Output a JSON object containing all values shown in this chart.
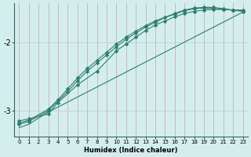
{
  "background_color": "#d4eeee",
  "line_color": "#2d7d6e",
  "grid_color_v": "#c8b0b0",
  "grid_color_h": "#b8d4d4",
  "xlabel": "Humidex (Indice chaleur)",
  "xlim": [
    -0.5,
    23.5
  ],
  "ylim": [
    -3.38,
    -1.42
  ],
  "yticks": [
    -3,
    -2
  ],
  "xticks": [
    0,
    1,
    2,
    3,
    4,
    5,
    6,
    7,
    8,
    9,
    10,
    11,
    12,
    13,
    14,
    15,
    16,
    17,
    18,
    19,
    20,
    21,
    22,
    23
  ],
  "series": [
    {
      "x": [
        0,
        1,
        3,
        4,
        6,
        8,
        10,
        11,
        12,
        13,
        14,
        15,
        16,
        17,
        18,
        19,
        20,
        21,
        22,
        23
      ],
      "y": [
        -3.15,
        -3.12,
        -3.05,
        -2.88,
        -2.62,
        -2.42,
        -2.12,
        -2.02,
        -1.92,
        -1.82,
        -1.74,
        -1.68,
        -1.62,
        -1.57,
        -1.54,
        -1.52,
        -1.51,
        -1.51,
        -1.52,
        -1.52
      ],
      "marker": "D",
      "markersize": 2.5
    },
    {
      "x": [
        0,
        1,
        3,
        4,
        5,
        6,
        7,
        8,
        9,
        10,
        11,
        12,
        13,
        14,
        16,
        17,
        18,
        19,
        20,
        21,
        22,
        23
      ],
      "y": [
        -3.18,
        -3.14,
        -2.98,
        -2.84,
        -2.68,
        -2.52,
        -2.38,
        -2.26,
        -2.14,
        -2.02,
        -1.92,
        -1.83,
        -1.75,
        -1.68,
        -1.57,
        -1.52,
        -1.49,
        -1.48,
        -1.48,
        -1.5,
        -1.52,
        -1.54
      ],
      "marker": "D",
      "markersize": 2.5
    },
    {
      "x": [
        0,
        1,
        3,
        5,
        6,
        7,
        8,
        9,
        10,
        11,
        12,
        13,
        14,
        15,
        16,
        17,
        18,
        19,
        20,
        21,
        22,
        23
      ],
      "y": [
        -3.2,
        -3.16,
        -3.0,
        -2.72,
        -2.56,
        -2.42,
        -2.3,
        -2.18,
        -2.06,
        -1.95,
        -1.86,
        -1.77,
        -1.7,
        -1.63,
        -1.58,
        -1.53,
        -1.5,
        -1.49,
        -1.5,
        -1.51,
        -1.52,
        -1.53
      ],
      "marker": "D",
      "markersize": 2.5
    },
    {
      "x": [
        0,
        1,
        3,
        23
      ],
      "y": [
        -3.25,
        -3.2,
        -3.02,
        -1.55
      ],
      "marker": null,
      "markersize": 0
    }
  ]
}
